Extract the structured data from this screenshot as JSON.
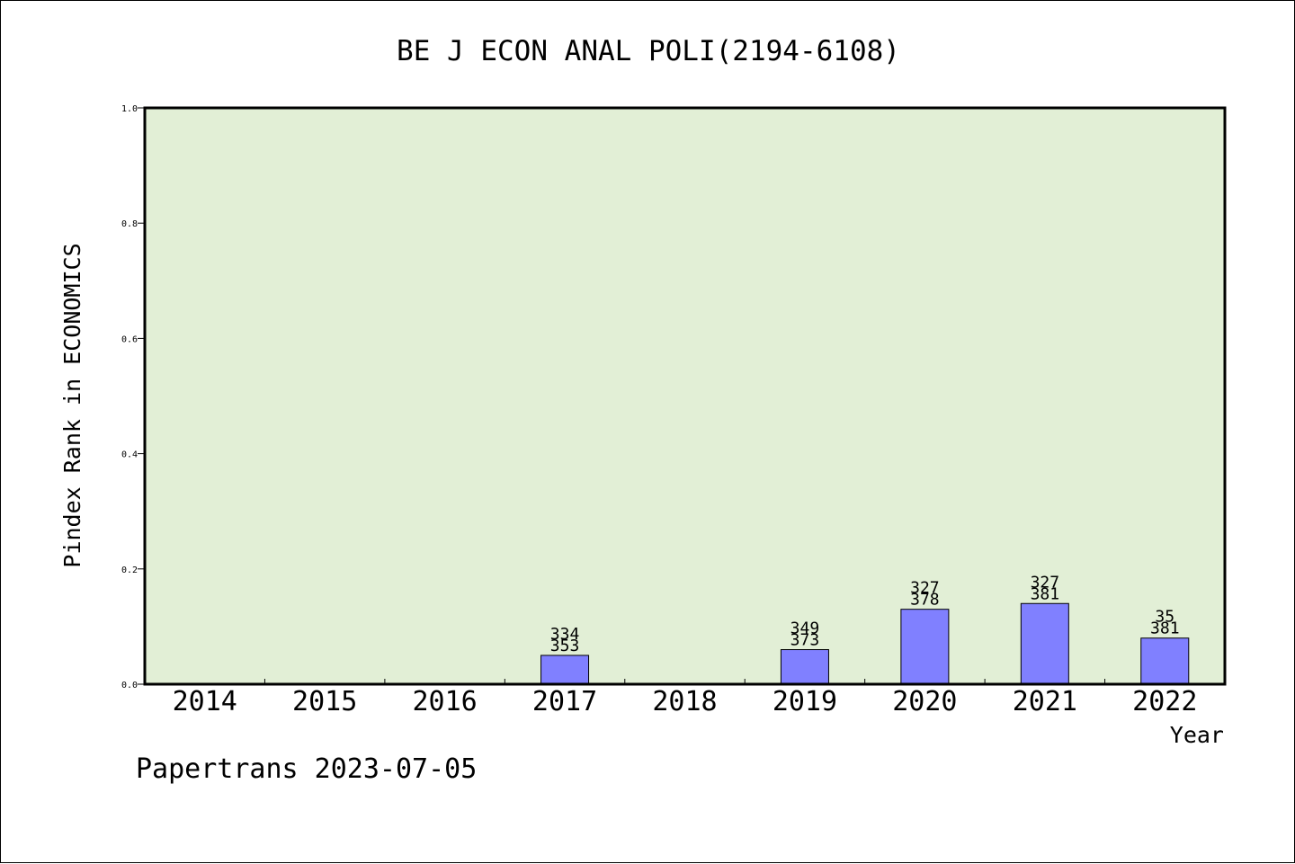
{
  "chart_data": {
    "type": "bar",
    "title": "BE J ECON ANAL POLI(2194-6108)",
    "xlabel": "Year",
    "ylabel": "Pindex Rank in ECONOMICS",
    "categories": [
      "2014",
      "2015",
      "2016",
      "2017",
      "2018",
      "2019",
      "2020",
      "2021",
      "2022"
    ],
    "values": [
      null,
      null,
      null,
      0.05,
      null,
      0.06,
      0.13,
      0.14,
      0.08
    ],
    "bar_labels": [
      null,
      null,
      null,
      {
        "top": "334",
        "bottom": "353"
      },
      null,
      {
        "top": "349",
        "bottom": "373"
      },
      {
        "top": "327",
        "bottom": "378"
      },
      {
        "top": "327",
        "bottom": "381"
      },
      {
        "top": "35",
        "bottom": "381"
      }
    ],
    "ylim": [
      0,
      1.0
    ],
    "yticks": [
      "0.0",
      "0.2",
      "0.4",
      "0.6",
      "0.8",
      "1.0"
    ],
    "grid": false,
    "colors": {
      "bar": "#8080ff",
      "plot_background": "#e2efd6",
      "axis": "#000000"
    }
  },
  "footer": {
    "text": "Papertrans 2023-07-05"
  }
}
